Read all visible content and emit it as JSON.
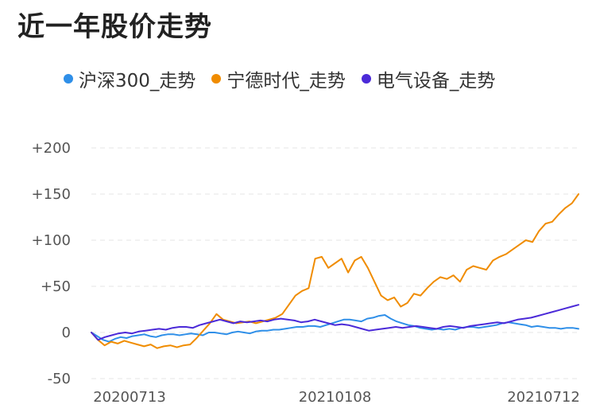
{
  "chart_data": {
    "type": "line",
    "title": "近一年股价走势",
    "legend_position": "top",
    "grid": true,
    "ylim": [
      -50,
      200
    ],
    "yticks": [
      -50,
      0,
      50,
      100,
      150,
      200
    ],
    "ytick_labels": [
      "-50",
      "0",
      "+50",
      "+100",
      "+150",
      "+200"
    ],
    "xticks": [
      "20200713",
      "20210108",
      "20210712"
    ],
    "series": [
      {
        "name": "沪深300_走势",
        "color": "#2f8fe8",
        "values": [
          0,
          -4,
          -8,
          -10,
          -7,
          -5,
          -6,
          -4,
          -3,
          -2,
          -4,
          -5,
          -3,
          -2,
          -2,
          -3,
          -2,
          -1,
          -2,
          -3,
          0,
          0,
          -1,
          -2,
          0,
          1,
          0,
          -1,
          1,
          2,
          2,
          3,
          3,
          4,
          5,
          6,
          6,
          7,
          7,
          6,
          8,
          10,
          12,
          14,
          14,
          13,
          12,
          15,
          16,
          18,
          19,
          15,
          12,
          10,
          8,
          7,
          5,
          4,
          3,
          4,
          3,
          4,
          3,
          5,
          6,
          6,
          5,
          6,
          7,
          8,
          10,
          11,
          10,
          9,
          8,
          6,
          7,
          6,
          5,
          5,
          4,
          5,
          5,
          4
        ]
      },
      {
        "name": "宁德时代_走势",
        "color": "#f08c00",
        "values": [
          0,
          -8,
          -14,
          -10,
          -12,
          -9,
          -11,
          -13,
          -15,
          -13,
          -17,
          -15,
          -14,
          -16,
          -14,
          -13,
          -6,
          2,
          10,
          20,
          14,
          12,
          10,
          11,
          12,
          10,
          12,
          14,
          16,
          20,
          30,
          40,
          45,
          48,
          80,
          82,
          70,
          75,
          80,
          65,
          78,
          82,
          70,
          55,
          40,
          35,
          38,
          28,
          32,
          42,
          40,
          48,
          55,
          60,
          58,
          62,
          55,
          68,
          72,
          70,
          68,
          78,
          82,
          85,
          90,
          95,
          100,
          98,
          110,
          118,
          120,
          128,
          135,
          140,
          150
        ]
      },
      {
        "name": "电气设备_走势",
        "color": "#4b2ad8",
        "values": [
          0,
          -8,
          -5,
          -3,
          -1,
          0,
          -1,
          1,
          2,
          3,
          4,
          3,
          5,
          6,
          6,
          5,
          8,
          10,
          12,
          14,
          12,
          10,
          12,
          11,
          12,
          13,
          12,
          14,
          15,
          14,
          13,
          11,
          12,
          14,
          12,
          10,
          8,
          9,
          8,
          6,
          4,
          2,
          3,
          4,
          5,
          6,
          5,
          6,
          7,
          6,
          5,
          4,
          6,
          7,
          6,
          5,
          7,
          8,
          9,
          10,
          11,
          10,
          12,
          14,
          15,
          16,
          18,
          20,
          22,
          24,
          26,
          28,
          30
        ]
      }
    ]
  }
}
